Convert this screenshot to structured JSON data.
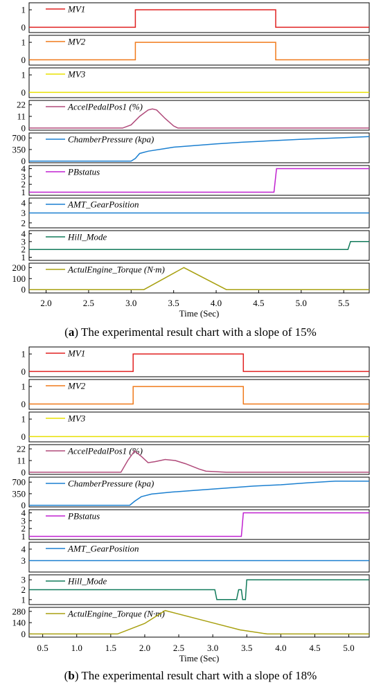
{
  "chart_data": [
    {
      "type": "line",
      "caption_letter": "a",
      "caption_text": " The experimental result chart with a slope of 15%",
      "xlabel": "Time (Sec)",
      "xlim": [
        1.8,
        5.8
      ],
      "xticks": [
        2.0,
        2.5,
        3.0,
        3.5,
        4.0,
        4.5,
        5.0,
        5.5
      ],
      "panels": [
        {
          "name": "MV1",
          "color": "#e02020",
          "yticks": [
            0,
            1
          ],
          "ylim": [
            -0.3,
            1.4
          ],
          "points": [
            [
              1.8,
              0
            ],
            [
              3.05,
              0
            ],
            [
              3.05,
              1
            ],
            [
              4.7,
              1
            ],
            [
              4.7,
              0
            ],
            [
              5.8,
              0
            ]
          ]
        },
        {
          "name": "MV2",
          "color": "#f07a1a",
          "yticks": [
            0,
            1
          ],
          "ylim": [
            -0.3,
            1.4
          ],
          "points": [
            [
              1.8,
              0
            ],
            [
              3.05,
              0
            ],
            [
              3.05,
              1
            ],
            [
              4.7,
              1
            ],
            [
              4.7,
              0
            ],
            [
              5.8,
              0
            ]
          ]
        },
        {
          "name": "MV3",
          "color": "#e8e000",
          "yticks": [
            0,
            1
          ],
          "ylim": [
            -0.3,
            1.4
          ],
          "points": [
            [
              1.8,
              0
            ],
            [
              5.8,
              0
            ]
          ]
        },
        {
          "name": "AccelPedalPos1 (%)",
          "color": "#b04a7a",
          "yticks": [
            0,
            11,
            22
          ],
          "ylim": [
            -2,
            26
          ],
          "points": [
            [
              1.8,
              0
            ],
            [
              2.9,
              0
            ],
            [
              3.0,
              3
            ],
            [
              3.1,
              11
            ],
            [
              3.2,
              17
            ],
            [
              3.25,
              18
            ],
            [
              3.3,
              17
            ],
            [
              3.4,
              9
            ],
            [
              3.5,
              2
            ],
            [
              3.55,
              0
            ],
            [
              5.8,
              0
            ]
          ]
        },
        {
          "name": "ChamberPressure (kpa)",
          "color": "#1a7fd0",
          "yticks": [
            0,
            350,
            700
          ],
          "ylim": [
            -50,
            850
          ],
          "points": [
            [
              1.8,
              0
            ],
            [
              3.0,
              0
            ],
            [
              3.05,
              80
            ],
            [
              3.1,
              230
            ],
            [
              3.2,
              300
            ],
            [
              3.4,
              380
            ],
            [
              3.5,
              420
            ],
            [
              3.7,
              460
            ],
            [
              4.0,
              520
            ],
            [
              4.3,
              570
            ],
            [
              4.6,
              610
            ],
            [
              5.0,
              660
            ],
            [
              5.4,
              700
            ],
            [
              5.8,
              740
            ]
          ]
        },
        {
          "name": "PBstatus",
          "color": "#c020d0",
          "yticks": [
            1,
            2,
            3,
            4
          ],
          "ylim": [
            0.6,
            4.4
          ],
          "points": [
            [
              1.8,
              1
            ],
            [
              4.68,
              1
            ],
            [
              4.71,
              4
            ],
            [
              5.8,
              4
            ]
          ]
        },
        {
          "name": "AMT_GearPosition",
          "color": "#1a7fd0",
          "yticks": [
            2,
            3,
            4
          ],
          "ylim": [
            1.5,
            4.5
          ],
          "points": [
            [
              1.8,
              3
            ],
            [
              5.8,
              3
            ]
          ]
        },
        {
          "name": "Hill_Mode",
          "color": "#107a5a",
          "yticks": [
            1,
            2,
            3,
            4
          ],
          "ylim": [
            0.6,
            4.4
          ],
          "points": [
            [
              1.8,
              2
            ],
            [
              5.55,
              2
            ],
            [
              5.58,
              3
            ],
            [
              5.8,
              3
            ]
          ]
        },
        {
          "name": "ActulEngine_Torque (N·m)",
          "color": "#a8a010",
          "yticks": [
            0,
            100,
            200
          ],
          "ylim": [
            -30,
            240
          ],
          "points": [
            [
              1.8,
              0
            ],
            [
              3.15,
              0
            ],
            [
              3.62,
              200
            ],
            [
              4.12,
              0
            ],
            [
              5.8,
              0
            ]
          ]
        }
      ]
    },
    {
      "type": "line",
      "caption_letter": "b",
      "caption_text": " The experimental result chart with a slope of 18%",
      "xlabel": "Time (Sec)",
      "xlim": [
        0.3,
        5.3
      ],
      "xticks": [
        0.5,
        1.0,
        1.5,
        2.0,
        2.5,
        3.0,
        3.5,
        4.0,
        4.5,
        5.0
      ],
      "panels": [
        {
          "name": "MV1",
          "color": "#e02020",
          "yticks": [
            0,
            1
          ],
          "ylim": [
            -0.3,
            1.4
          ],
          "points": [
            [
              0.3,
              0
            ],
            [
              1.83,
              0
            ],
            [
              1.83,
              1
            ],
            [
              3.45,
              1
            ],
            [
              3.45,
              0
            ],
            [
              5.3,
              0
            ]
          ]
        },
        {
          "name": "MV2",
          "color": "#f07a1a",
          "yticks": [
            0,
            1
          ],
          "ylim": [
            -0.3,
            1.4
          ],
          "points": [
            [
              0.3,
              0
            ],
            [
              1.83,
              0
            ],
            [
              1.83,
              1
            ],
            [
              3.45,
              1
            ],
            [
              3.45,
              0
            ],
            [
              5.3,
              0
            ]
          ]
        },
        {
          "name": "MV3",
          "color": "#e8e000",
          "yticks": [
            0,
            1
          ],
          "ylim": [
            -0.3,
            1.4
          ],
          "points": [
            [
              0.3,
              0
            ],
            [
              5.3,
              0
            ]
          ]
        },
        {
          "name": "AccelPedalPos1 (%)",
          "color": "#b04a7a",
          "yticks": [
            0,
            11,
            22
          ],
          "ylim": [
            -2,
            26
          ],
          "points": [
            [
              0.3,
              0
            ],
            [
              1.65,
              0
            ],
            [
              1.75,
              11
            ],
            [
              1.85,
              20
            ],
            [
              1.95,
              15
            ],
            [
              2.05,
              9
            ],
            [
              2.15,
              10
            ],
            [
              2.3,
              12
            ],
            [
              2.45,
              11
            ],
            [
              2.6,
              8
            ],
            [
              2.8,
              3
            ],
            [
              2.9,
              1
            ],
            [
              3.2,
              0
            ],
            [
              5.3,
              0
            ]
          ]
        },
        {
          "name": "ChamberPressure (kpa)",
          "color": "#1a7fd0",
          "yticks": [
            0,
            350,
            700
          ],
          "ylim": [
            -50,
            850
          ],
          "points": [
            [
              0.3,
              0
            ],
            [
              1.78,
              0
            ],
            [
              1.85,
              120
            ],
            [
              1.95,
              260
            ],
            [
              2.1,
              340
            ],
            [
              2.4,
              400
            ],
            [
              2.8,
              460
            ],
            [
              3.2,
              520
            ],
            [
              3.6,
              580
            ],
            [
              4.0,
              620
            ],
            [
              4.4,
              680
            ],
            [
              4.8,
              730
            ],
            [
              5.3,
              730
            ]
          ]
        },
        {
          "name": "PBstatus",
          "color": "#c020d0",
          "yticks": [
            1,
            2,
            3,
            4
          ],
          "ylim": [
            0.6,
            4.4
          ],
          "points": [
            [
              0.3,
              1
            ],
            [
              3.42,
              1
            ],
            [
              3.45,
              4
            ],
            [
              5.3,
              4
            ]
          ]
        },
        {
          "name": "AMT_GearPosition",
          "color": "#1a7fd0",
          "yticks": [
            3,
            4
          ],
          "ylim": [
            2,
            4.6
          ],
          "points": [
            [
              0.3,
              3
            ],
            [
              5.3,
              3
            ]
          ]
        },
        {
          "name": "Hill_Mode",
          "color": "#107a5a",
          "yticks": [
            1,
            2,
            3
          ],
          "ylim": [
            0.5,
            3.5
          ],
          "points": [
            [
              0.3,
              2
            ],
            [
              3.03,
              2
            ],
            [
              3.06,
              1
            ],
            [
              3.35,
              1
            ],
            [
              3.38,
              2
            ],
            [
              3.42,
              2
            ],
            [
              3.44,
              1
            ],
            [
              3.48,
              1
            ],
            [
              3.5,
              3
            ],
            [
              5.3,
              3
            ]
          ]
        },
        {
          "name": "ActulEngine_Torque (N·m)",
          "color": "#a8a010",
          "yticks": [
            0,
            140,
            280
          ],
          "ylim": [
            -40,
            330
          ],
          "points": [
            [
              0.3,
              0
            ],
            [
              1.6,
              0
            ],
            [
              2.0,
              130
            ],
            [
              2.3,
              290
            ],
            [
              2.9,
              160
            ],
            [
              3.4,
              50
            ],
            [
              3.8,
              0
            ],
            [
              5.3,
              0
            ]
          ]
        }
      ]
    }
  ]
}
